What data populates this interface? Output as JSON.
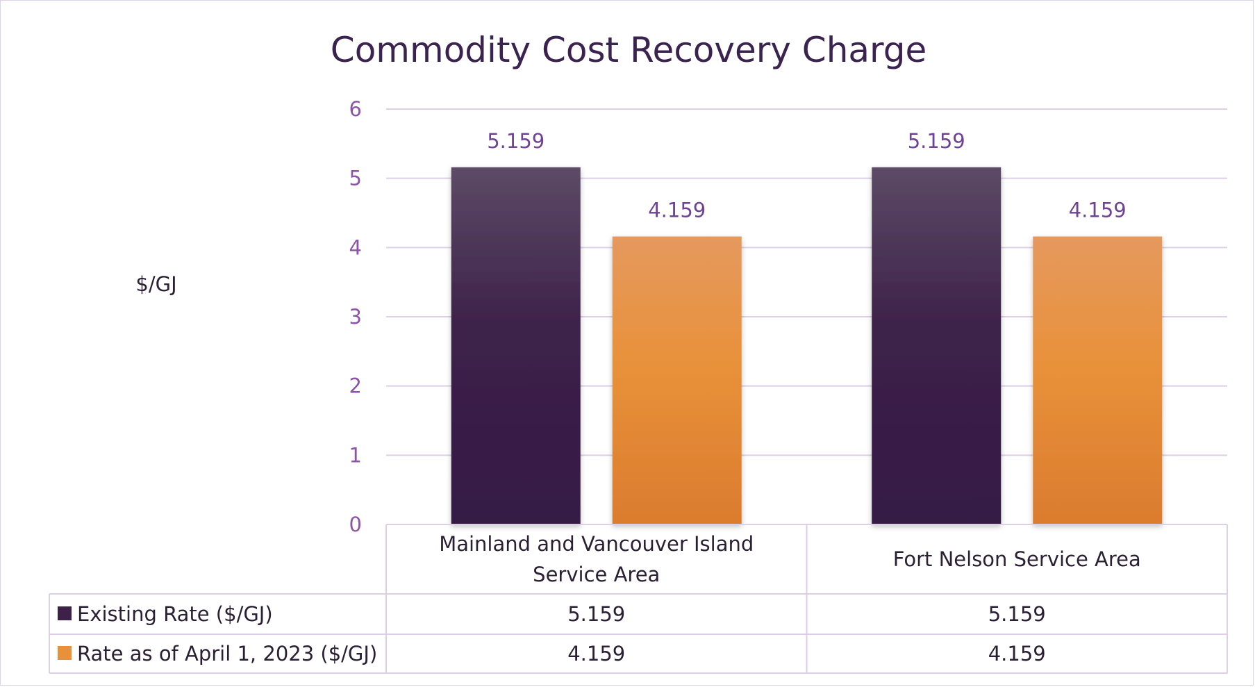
{
  "chart_data": {
    "type": "bar",
    "title": "Commodity Cost Recovery Charge",
    "ylabel": "$/GJ",
    "xlabel": "",
    "ylim": [
      0,
      6
    ],
    "yticks": [
      "0",
      "1",
      "2",
      "3",
      "4",
      "5",
      "6"
    ],
    "grid": true,
    "legend": "data-table",
    "categories": [
      [
        "Mainland and Vancouver Island",
        "Service Area"
      ],
      [
        "Fort Nelson Service Area"
      ]
    ],
    "series": [
      {
        "name": "Existing Rate ($/GJ)",
        "values": [
          5.159,
          5.159
        ],
        "labels": [
          "5.159",
          "5.159"
        ],
        "color": "#3d2149"
      },
      {
        "name": "Rate as of April 1, 2023 ($/GJ)",
        "values": [
          4.159,
          4.159
        ],
        "labels": [
          "4.159",
          "4.159"
        ],
        "color": "#e8913a"
      }
    ]
  }
}
